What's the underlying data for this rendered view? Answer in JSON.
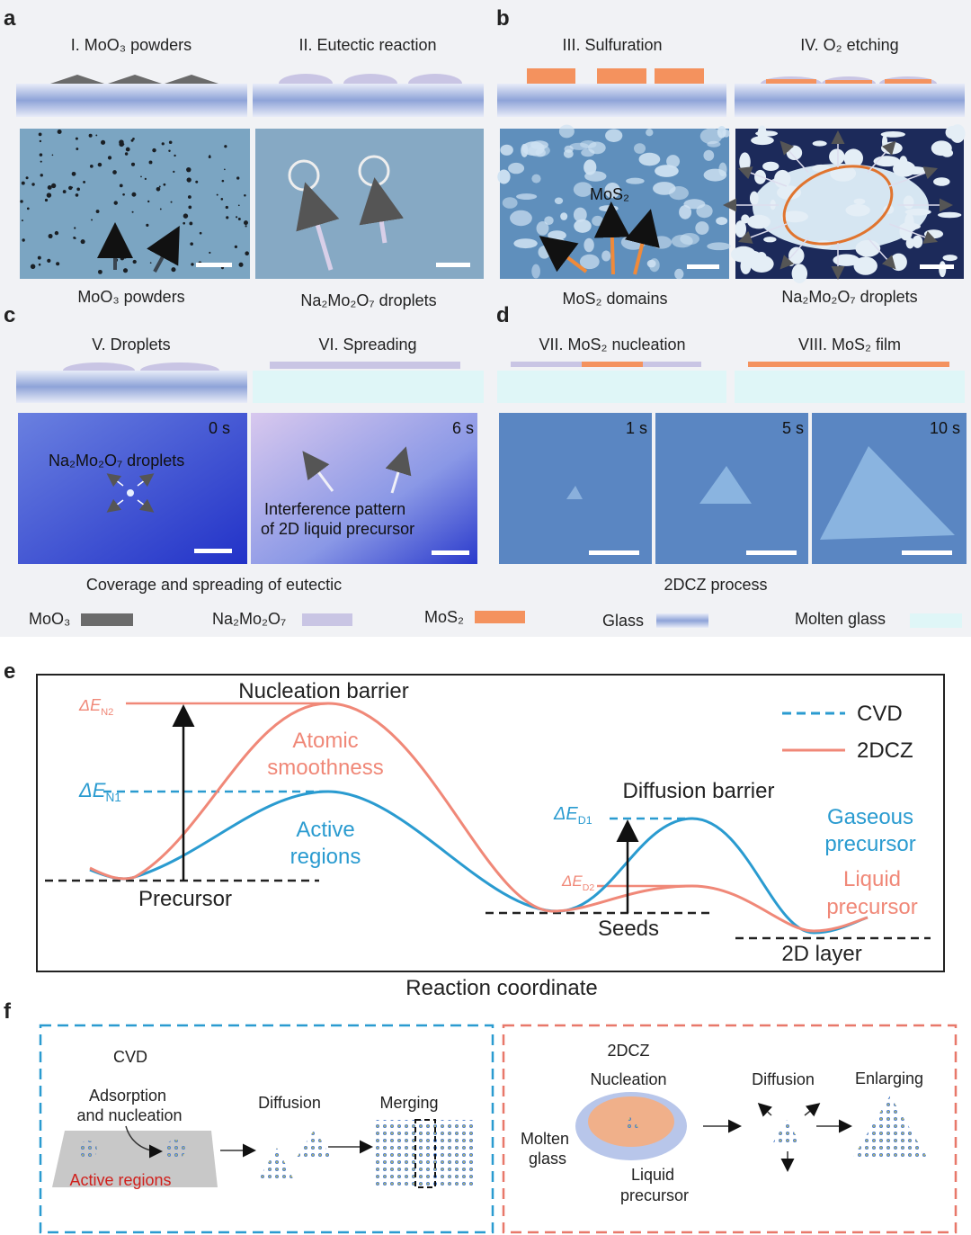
{
  "panel_a": {
    "label": "a",
    "step1": "I. MoO₃ powders",
    "step2": "II. Eutectic reaction",
    "caption1": "MoO₃ powders",
    "caption2": "Na₂Mo₂O₇ droplets"
  },
  "panel_b": {
    "label": "b",
    "step1": "III. Sulfuration",
    "step2": "IV. O₂ etching",
    "image_label": "MoS₂",
    "caption1": "MoS₂ domains",
    "caption2": "Na₂Mo₂O₇ droplets"
  },
  "panel_c": {
    "label": "c",
    "step1": "V. Droplets",
    "step2": "VI. Spreading",
    "time1": "0 s",
    "time2": "6 s",
    "image_label1": "Na₂Mo₂O₇ droplets",
    "image_label2": [
      "Interference pattern",
      "of 2D liquid precursor"
    ],
    "caption": "Coverage and spreading of eutectic"
  },
  "panel_d": {
    "label": "d",
    "step1": "VII. MoS₂ nucleation",
    "step2": "VIII. MoS₂ film",
    "times": [
      "1 s",
      "5 s",
      "10 s"
    ],
    "caption": "2DCZ process"
  },
  "legend": [
    "MoO₃",
    "Na₂Mo₂O₇",
    "MoS₂",
    "Glass",
    "Molten glass"
  ],
  "panel_e": {
    "label": "e",
    "nucleation_barrier": "Nucleation barrier",
    "dE_N2": {
      "main": "ΔE",
      "sub": "N2"
    },
    "dE_N1": {
      "main": "ΔE",
      "sub": "N1"
    },
    "atomic_smoothness": [
      "Atomic",
      "smoothness"
    ],
    "active_regions": [
      "Active",
      "regions"
    ],
    "precursor": "Precursor",
    "diffusion_barrier": "Diffusion barrier",
    "dE_D1": {
      "main": "ΔE",
      "sub": "D1"
    },
    "dE_D2": {
      "main": "ΔE",
      "sub": "D2"
    },
    "seeds": "Seeds",
    "layer": "2D layer",
    "gaseous": [
      "Gaseous",
      "precursor"
    ],
    "liquid": [
      "Liquid",
      "precursor"
    ],
    "legend": [
      "CVD",
      "2DCZ"
    ],
    "xlabel": "Reaction coordinate"
  },
  "panel_f": {
    "label": "f",
    "cvd": {
      "title": "CVD",
      "adsorption": [
        "Adsorption",
        "and nucleation"
      ],
      "active_regions": "Active regions",
      "diffusion": "Diffusion",
      "merging": "Merging"
    },
    "dcz": {
      "title": "2DCZ",
      "nucleation": "Nucleation",
      "molten_glass": [
        "Molten",
        "glass"
      ],
      "liquid_precursor": [
        "Liquid",
        "precursor"
      ],
      "diffusion": "Diffusion",
      "enlarging": "Enlarging"
    }
  }
}
